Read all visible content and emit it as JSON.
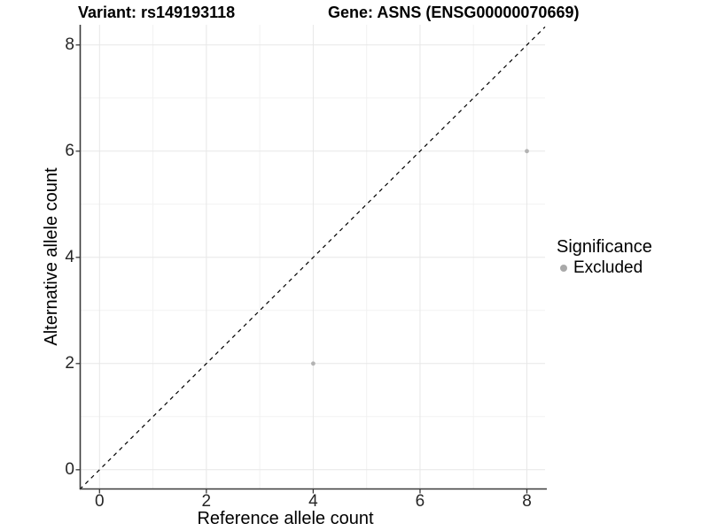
{
  "chart_data": {
    "type": "scatter",
    "title_left": "Variant: rs149193118",
    "title_right": "Gene: ASNS (ENSG00000070669)",
    "xlabel": "Reference allele count",
    "ylabel": "Alternative allele count",
    "xlim": [
      -0.37,
      8.34
    ],
    "ylim": [
      -0.37,
      8.38
    ],
    "xticks": [
      0,
      2,
      4,
      6,
      8
    ],
    "yticks": [
      0,
      2,
      4,
      6,
      8
    ],
    "xminor": [
      1,
      3,
      5,
      7
    ],
    "yminor": [
      1,
      3,
      5,
      7
    ],
    "grid": true,
    "legend_position": "right",
    "identity_line": {
      "equation": "y = x",
      "style": "dashed",
      "color": "#000000"
    },
    "series": [
      {
        "name": "Excluded",
        "marker": "circle",
        "marker_color": "#b3b3b3",
        "points": [
          {
            "x": 4,
            "y": 2
          },
          {
            "x": 8,
            "y": 6
          }
        ]
      }
    ],
    "legend": {
      "title": "Significance",
      "entries": [
        {
          "label": "Excluded",
          "color": "#a9a9a9",
          "marker": "circle"
        }
      ]
    },
    "colors": {
      "background": "#ffffff",
      "grid_major": "#e7e7e7",
      "grid_minor": "#f2f2f2",
      "axis_line": "#3a3a3a",
      "tick_mark": "#3a3a3a",
      "tick_text": "#262626",
      "point": "#b3b3b3",
      "ref_line": "#000000"
    }
  }
}
